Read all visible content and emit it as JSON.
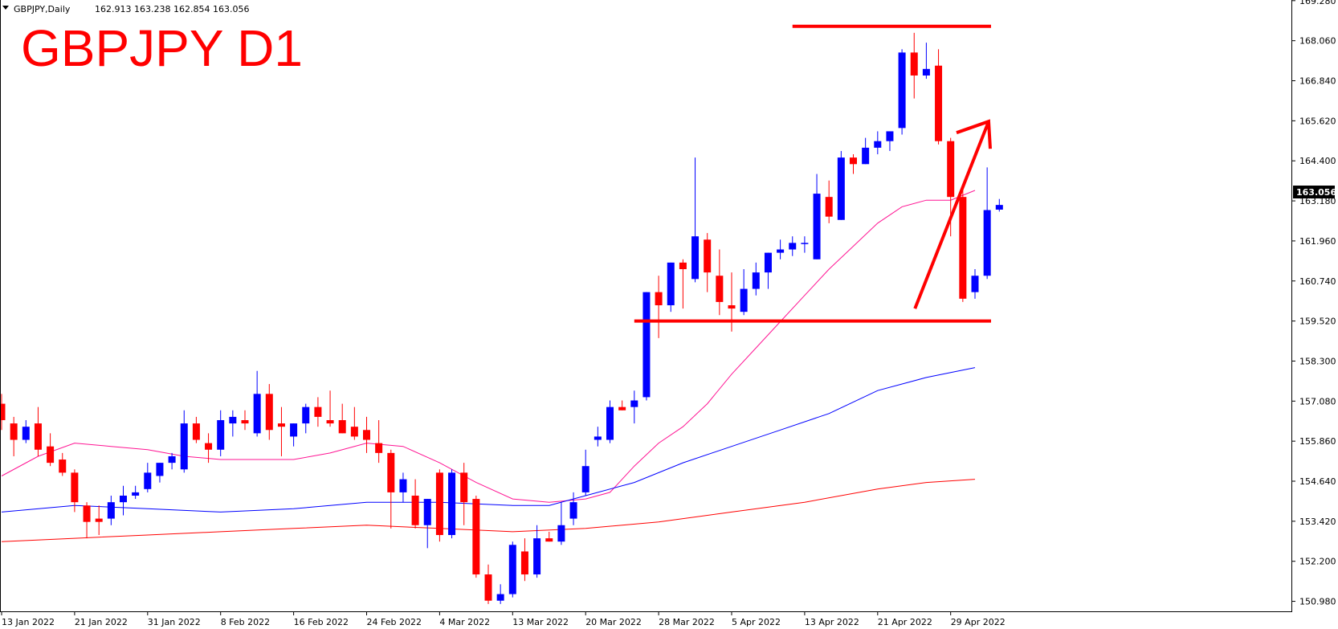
{
  "window": {
    "symbol_line": "GBPJPY,Daily",
    "ohlc_line": "162.913 163.238 162.854 163.056"
  },
  "title": {
    "text": "GBPJPY D1",
    "color": "#ff0000"
  },
  "current_price": "163.056",
  "colors": {
    "bull": "#0000ff",
    "bear": "#ff0000",
    "ma_fast": "#ff1493",
    "ma_mid": "#0000ff",
    "ma_slow": "#ff0000",
    "annotation": "#ff0000",
    "axis": "#000000"
  },
  "chart_data": {
    "type": "candlestick",
    "y_ticks": [
      "169.280",
      "168.060",
      "166.840",
      "165.620",
      "164.400",
      "163.180",
      "161.960",
      "160.740",
      "159.520",
      "158.300",
      "157.080",
      "155.860",
      "154.640",
      "153.420",
      "152.200",
      "150.980"
    ],
    "ylim": [
      150.7,
      169.3
    ],
    "x_ticks": [
      {
        "label": "13 Jan 2022",
        "index": 0
      },
      {
        "label": "21 Jan 2022",
        "index": 6
      },
      {
        "label": "31 Jan 2022",
        "index": 12
      },
      {
        "label": "8 Feb 2022",
        "index": 18
      },
      {
        "label": "16 Feb 2022",
        "index": 24
      },
      {
        "label": "24 Feb 2022",
        "index": 30
      },
      {
        "label": "4 Mar 2022",
        "index": 36
      },
      {
        "label": "13 Mar 2022",
        "index": 42
      },
      {
        "label": "20 Mar 2022",
        "index": 48
      },
      {
        "label": "28 Mar 2022",
        "index": 54
      },
      {
        "label": "5 Apr 2022",
        "index": 60
      },
      {
        "label": "13 Apr 2022",
        "index": 66
      },
      {
        "label": "21 Apr 2022",
        "index": 72
      },
      {
        "label": "29 Apr 2022",
        "index": 78
      }
    ],
    "candles": [
      {
        "o": 157.0,
        "h": 157.3,
        "l": 156.2,
        "c": 156.5
      },
      {
        "o": 156.4,
        "h": 156.6,
        "l": 155.4,
        "c": 155.9
      },
      {
        "o": 155.9,
        "h": 156.5,
        "l": 155.8,
        "c": 156.3
      },
      {
        "o": 156.4,
        "h": 156.9,
        "l": 155.4,
        "c": 155.6
      },
      {
        "o": 155.7,
        "h": 156.1,
        "l": 155.1,
        "c": 155.2
      },
      {
        "o": 155.3,
        "h": 155.5,
        "l": 154.8,
        "c": 154.9
      },
      {
        "o": 154.9,
        "h": 155.0,
        "l": 153.7,
        "c": 154.0
      },
      {
        "o": 153.9,
        "h": 154.0,
        "l": 152.9,
        "c": 153.4
      },
      {
        "o": 153.5,
        "h": 153.9,
        "l": 153.0,
        "c": 153.4
      },
      {
        "o": 153.5,
        "h": 154.2,
        "l": 153.3,
        "c": 154.0
      },
      {
        "o": 154.0,
        "h": 154.5,
        "l": 153.6,
        "c": 154.2
      },
      {
        "o": 154.2,
        "h": 154.5,
        "l": 154.1,
        "c": 154.3
      },
      {
        "o": 154.4,
        "h": 155.2,
        "l": 154.3,
        "c": 154.9
      },
      {
        "o": 154.8,
        "h": 155.2,
        "l": 154.6,
        "c": 155.2
      },
      {
        "o": 155.2,
        "h": 155.5,
        "l": 155.0,
        "c": 155.4
      },
      {
        "o": 155.0,
        "h": 156.8,
        "l": 154.9,
        "c": 156.4
      },
      {
        "o": 156.4,
        "h": 156.6,
        "l": 155.8,
        "c": 155.9
      },
      {
        "o": 155.8,
        "h": 156.1,
        "l": 155.2,
        "c": 155.6
      },
      {
        "o": 155.6,
        "h": 156.8,
        "l": 155.4,
        "c": 156.5
      },
      {
        "o": 156.4,
        "h": 156.8,
        "l": 156.0,
        "c": 156.6
      },
      {
        "o": 156.5,
        "h": 156.8,
        "l": 156.2,
        "c": 156.4
      },
      {
        "o": 156.1,
        "h": 158.0,
        "l": 156.0,
        "c": 157.3
      },
      {
        "o": 157.3,
        "h": 157.6,
        "l": 155.9,
        "c": 156.2
      },
      {
        "o": 156.4,
        "h": 156.9,
        "l": 155.4,
        "c": 156.3
      },
      {
        "o": 156.0,
        "h": 156.4,
        "l": 155.7,
        "c": 156.4
      },
      {
        "o": 156.4,
        "h": 157.0,
        "l": 156.1,
        "c": 156.9
      },
      {
        "o": 156.9,
        "h": 157.2,
        "l": 156.3,
        "c": 156.6
      },
      {
        "o": 156.5,
        "h": 157.4,
        "l": 156.3,
        "c": 156.4
      },
      {
        "o": 156.5,
        "h": 157.0,
        "l": 156.1,
        "c": 156.1
      },
      {
        "o": 156.3,
        "h": 156.9,
        "l": 155.9,
        "c": 156.0
      },
      {
        "o": 156.2,
        "h": 156.6,
        "l": 155.5,
        "c": 155.9
      },
      {
        "o": 155.8,
        "h": 156.5,
        "l": 155.2,
        "c": 155.5
      },
      {
        "o": 155.5,
        "h": 155.6,
        "l": 153.2,
        "c": 154.3
      },
      {
        "o": 154.3,
        "h": 154.9,
        "l": 154.0,
        "c": 154.7
      },
      {
        "o": 154.2,
        "h": 154.7,
        "l": 153.2,
        "c": 153.3
      },
      {
        "o": 153.3,
        "h": 154.1,
        "l": 152.6,
        "c": 154.1
      },
      {
        "o": 154.9,
        "h": 155.0,
        "l": 152.8,
        "c": 153.0
      },
      {
        "o": 153.0,
        "h": 155.0,
        "l": 152.9,
        "c": 154.9
      },
      {
        "o": 154.9,
        "h": 155.2,
        "l": 153.3,
        "c": 154.0
      },
      {
        "o": 154.1,
        "h": 154.2,
        "l": 151.7,
        "c": 151.8
      },
      {
        "o": 151.8,
        "h": 152.1,
        "l": 150.9,
        "c": 151.0
      },
      {
        "o": 151.0,
        "h": 151.5,
        "l": 150.9,
        "c": 151.2
      },
      {
        "o": 151.2,
        "h": 152.8,
        "l": 151.1,
        "c": 152.7
      },
      {
        "o": 152.5,
        "h": 152.9,
        "l": 151.6,
        "c": 151.8
      },
      {
        "o": 151.8,
        "h": 153.3,
        "l": 151.7,
        "c": 152.9
      },
      {
        "o": 152.9,
        "h": 153.1,
        "l": 152.8,
        "c": 152.8
      },
      {
        "o": 152.8,
        "h": 154.0,
        "l": 152.7,
        "c": 153.3
      },
      {
        "o": 153.5,
        "h": 154.3,
        "l": 153.3,
        "c": 154.0
      },
      {
        "o": 154.3,
        "h": 155.6,
        "l": 154.2,
        "c": 155.1
      },
      {
        "o": 155.9,
        "h": 156.3,
        "l": 155.7,
        "c": 156.0
      },
      {
        "o": 155.9,
        "h": 157.1,
        "l": 155.8,
        "c": 156.9
      },
      {
        "o": 156.9,
        "h": 157.1,
        "l": 156.8,
        "c": 156.8
      },
      {
        "o": 156.9,
        "h": 157.4,
        "l": 156.4,
        "c": 157.1
      },
      {
        "o": 157.2,
        "h": 160.4,
        "l": 157.1,
        "c": 160.4
      },
      {
        "o": 160.4,
        "h": 160.9,
        "l": 159.0,
        "c": 160.0
      },
      {
        "o": 160.0,
        "h": 161.3,
        "l": 159.8,
        "c": 161.3
      },
      {
        "o": 161.3,
        "h": 161.4,
        "l": 159.9,
        "c": 161.1
      },
      {
        "o": 160.8,
        "h": 164.5,
        "l": 160.7,
        "c": 162.1
      },
      {
        "o": 162.0,
        "h": 162.2,
        "l": 160.4,
        "c": 161.0
      },
      {
        "o": 160.9,
        "h": 161.7,
        "l": 159.7,
        "c": 160.1
      },
      {
        "o": 160.0,
        "h": 161.0,
        "l": 159.2,
        "c": 159.9
      },
      {
        "o": 159.8,
        "h": 161.1,
        "l": 159.7,
        "c": 160.5
      },
      {
        "o": 160.5,
        "h": 161.3,
        "l": 160.3,
        "c": 161.0
      },
      {
        "o": 161.0,
        "h": 161.6,
        "l": 160.5,
        "c": 161.6
      },
      {
        "o": 161.6,
        "h": 162.0,
        "l": 161.4,
        "c": 161.7
      },
      {
        "o": 161.7,
        "h": 162.1,
        "l": 161.5,
        "c": 161.9
      },
      {
        "o": 161.9,
        "h": 162.1,
        "l": 161.6,
        "c": 161.9
      },
      {
        "o": 161.4,
        "h": 164.0,
        "l": 161.4,
        "c": 163.4
      },
      {
        "o": 163.3,
        "h": 163.8,
        "l": 162.5,
        "c": 162.7
      },
      {
        "o": 162.6,
        "h": 164.7,
        "l": 162.6,
        "c": 164.5
      },
      {
        "o": 164.5,
        "h": 164.6,
        "l": 164.0,
        "c": 164.3
      },
      {
        "o": 164.3,
        "h": 165.1,
        "l": 164.3,
        "c": 164.8
      },
      {
        "o": 164.8,
        "h": 165.3,
        "l": 164.6,
        "c": 165.0
      },
      {
        "o": 165.0,
        "h": 165.2,
        "l": 164.7,
        "c": 165.3
      },
      {
        "o": 165.4,
        "h": 167.8,
        "l": 165.2,
        "c": 167.7
      },
      {
        "o": 167.7,
        "h": 168.3,
        "l": 166.3,
        "c": 167.0
      },
      {
        "o": 167.0,
        "h": 168.0,
        "l": 166.9,
        "c": 167.2
      },
      {
        "o": 167.3,
        "h": 167.8,
        "l": 164.9,
        "c": 165.0
      },
      {
        "o": 165.0,
        "h": 165.1,
        "l": 162.1,
        "c": 163.3
      },
      {
        "o": 163.3,
        "h": 163.5,
        "l": 160.1,
        "c": 160.2
      },
      {
        "o": 160.4,
        "h": 161.1,
        "l": 160.2,
        "c": 160.9
      },
      {
        "o": 160.9,
        "h": 164.2,
        "l": 160.8,
        "c": 162.9
      },
      {
        "o": 162.913,
        "h": 163.238,
        "l": 162.854,
        "c": 163.056
      }
    ],
    "moving_averages": [
      {
        "color_key": "ma_fast",
        "points": [
          [
            0,
            154.8
          ],
          [
            3,
            155.4
          ],
          [
            6,
            155.8
          ],
          [
            9,
            155.7
          ],
          [
            12,
            155.6
          ],
          [
            15,
            155.4
          ],
          [
            18,
            155.3
          ],
          [
            21,
            155.3
          ],
          [
            24,
            155.3
          ],
          [
            27,
            155.5
          ],
          [
            30,
            155.8
          ],
          [
            33,
            155.7
          ],
          [
            36,
            155.2
          ],
          [
            39,
            154.6
          ],
          [
            42,
            154.1
          ],
          [
            45,
            154.0
          ],
          [
            48,
            154.1
          ],
          [
            50,
            154.3
          ],
          [
            52,
            155.1
          ],
          [
            54,
            155.8
          ],
          [
            56,
            156.3
          ],
          [
            58,
            157.0
          ],
          [
            60,
            157.9
          ],
          [
            62,
            158.7
          ],
          [
            64,
            159.5
          ],
          [
            66,
            160.3
          ],
          [
            68,
            161.1
          ],
          [
            70,
            161.8
          ],
          [
            72,
            162.5
          ],
          [
            74,
            163.0
          ],
          [
            76,
            163.2
          ],
          [
            78,
            163.2
          ],
          [
            80,
            163.5
          ]
        ]
      },
      {
        "color_key": "ma_mid",
        "points": [
          [
            0,
            153.7
          ],
          [
            6,
            153.9
          ],
          [
            12,
            153.8
          ],
          [
            18,
            153.7
          ],
          [
            24,
            153.8
          ],
          [
            30,
            154.0
          ],
          [
            36,
            154.0
          ],
          [
            42,
            153.9
          ],
          [
            45,
            153.9
          ],
          [
            48,
            154.2
          ],
          [
            52,
            154.6
          ],
          [
            56,
            155.2
          ],
          [
            60,
            155.7
          ],
          [
            64,
            156.2
          ],
          [
            68,
            156.7
          ],
          [
            72,
            157.4
          ],
          [
            76,
            157.8
          ],
          [
            80,
            158.1
          ]
        ]
      },
      {
        "color_key": "ma_slow",
        "points": [
          [
            0,
            152.8
          ],
          [
            6,
            152.9
          ],
          [
            12,
            153.0
          ],
          [
            18,
            153.1
          ],
          [
            24,
            153.2
          ],
          [
            30,
            153.3
          ],
          [
            36,
            153.2
          ],
          [
            42,
            153.1
          ],
          [
            48,
            153.2
          ],
          [
            54,
            153.4
          ],
          [
            60,
            153.7
          ],
          [
            66,
            154.0
          ],
          [
            72,
            154.4
          ],
          [
            76,
            154.6
          ],
          [
            80,
            154.7
          ]
        ]
      }
    ],
    "annotations": {
      "resistance": {
        "price": 168.5,
        "from_index": 65,
        "to_index": 80
      },
      "support": {
        "price": 159.52,
        "from_index": 52,
        "to_index": 80
      },
      "arrow": {
        "from_index": 75,
        "from_price": 159.9,
        "to_index": 80,
        "to_price": 165.6
      }
    },
    "current_price": 163.056,
    "grid": false
  }
}
